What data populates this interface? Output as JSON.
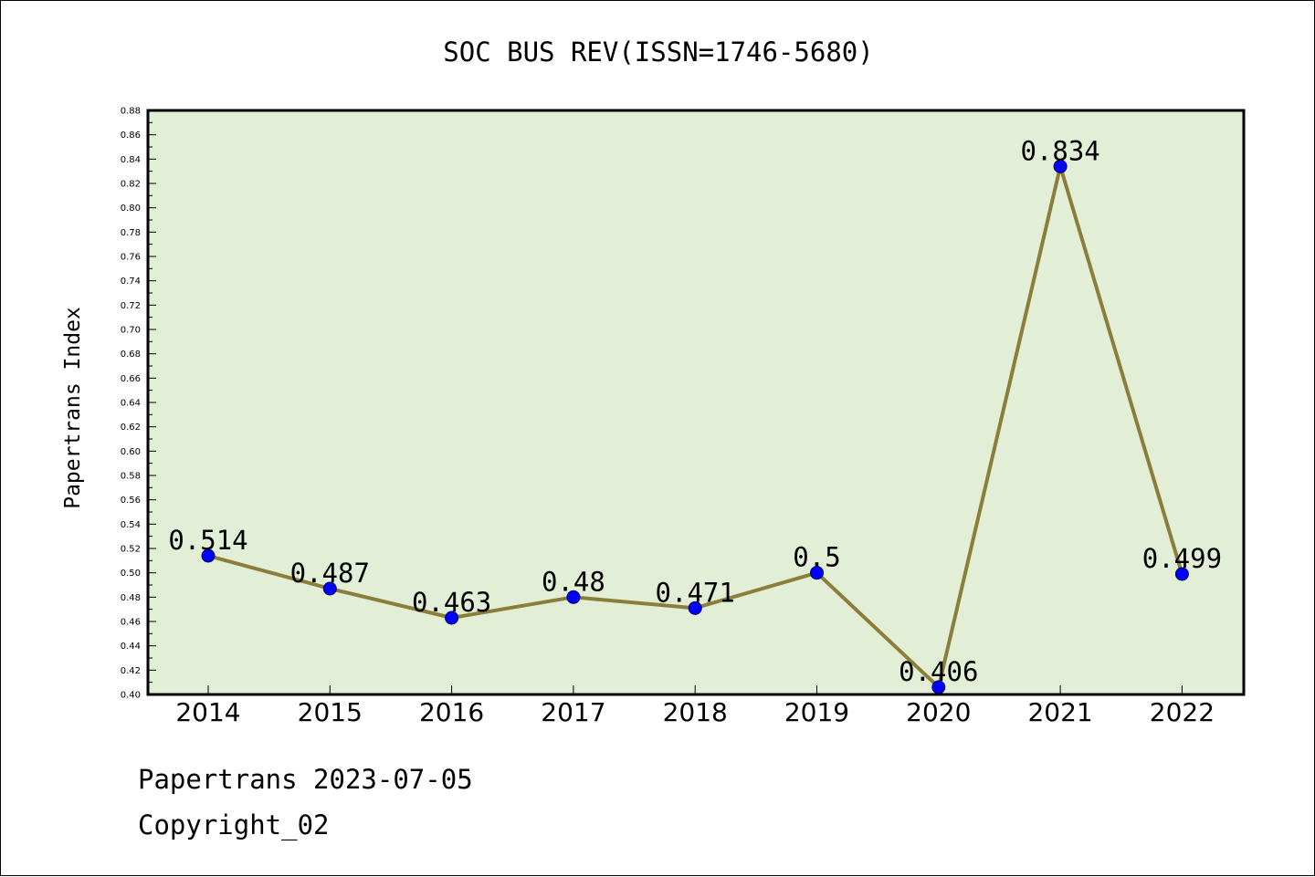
{
  "chart_data": {
    "type": "line",
    "title": "SOC BUS REV(ISSN=1746-5680)",
    "xlabel": "",
    "ylabel": "Papertrans Index",
    "categories": [
      "2014",
      "2015",
      "2016",
      "2017",
      "2018",
      "2019",
      "2020",
      "2021",
      "2022"
    ],
    "series": [
      {
        "values": [
          0.514,
          0.487,
          0.463,
          0.48,
          0.471,
          0.5,
          0.406,
          0.834,
          0.499
        ],
        "data_labels": [
          "0.514",
          "0.487",
          "0.463",
          "0.48",
          "0.471",
          "0.5",
          "0.406",
          "0.834",
          "0.499"
        ]
      }
    ],
    "ylim": [
      0.4,
      0.88
    ],
    "yticks": [
      "0.40",
      "0.42",
      "0.44",
      "0.46",
      "0.48",
      "0.50",
      "0.52",
      "0.54",
      "0.56",
      "0.58",
      "0.60",
      "0.62",
      "0.64",
      "0.66",
      "0.68",
      "0.70",
      "0.72",
      "0.74",
      "0.76",
      "0.78",
      "0.80",
      "0.82",
      "0.84",
      "0.86",
      "0.88"
    ],
    "grid": false,
    "legend": "none"
  },
  "colors": {
    "plot_background": "#e2efd6",
    "line": "#8b7d3a",
    "marker": "#0000ff",
    "axis": "#000000"
  },
  "footer": {
    "line1": "Papertrans 2023-07-05",
    "line2": "Copyright_02"
  }
}
